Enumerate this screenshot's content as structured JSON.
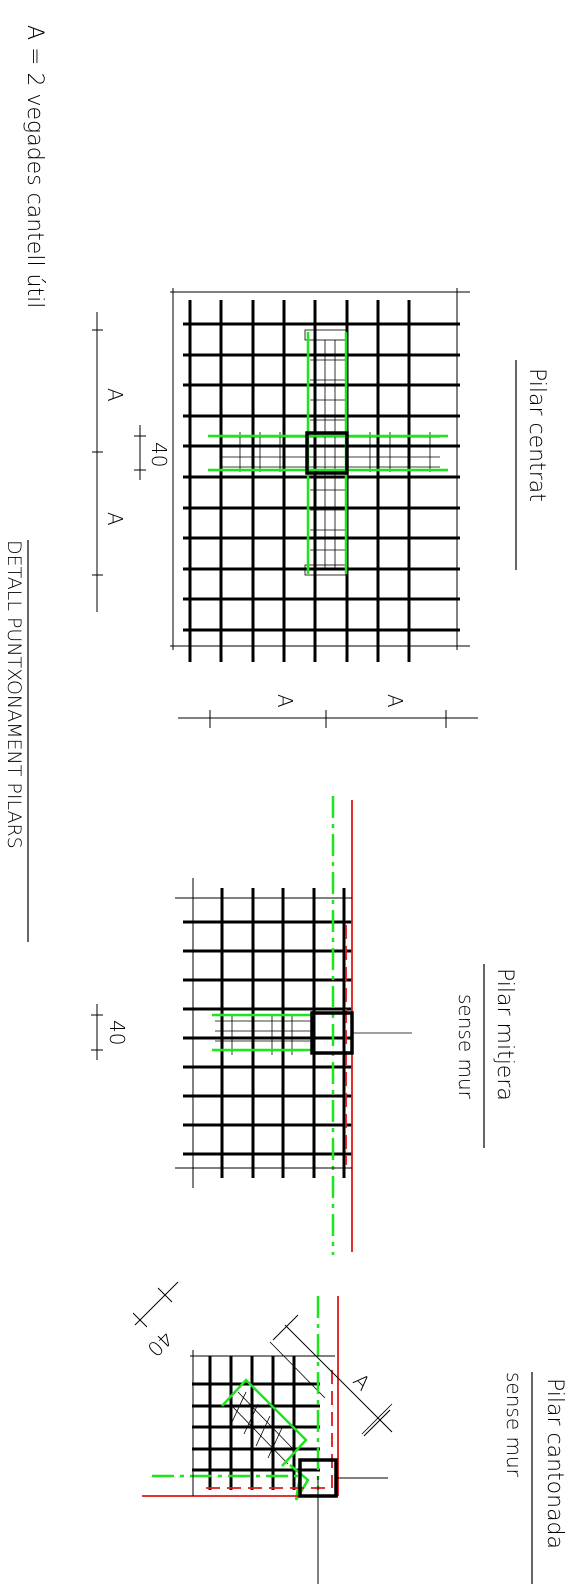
{
  "drawing": {
    "general_note": "A = 2 vegades cantell útil",
    "sheet_title": "DETALL PUNTXONAMENT PILARS",
    "center_section": {
      "title": "Pilar centrat",
      "dim_left_1": "A",
      "dim_left_2": "A",
      "dim_small": "40",
      "dim_bottom_1": "A",
      "dim_bottom_2": "A"
    },
    "middle_section": {
      "title": "Pilar mitjera",
      "subtitle": "sense mur",
      "dim_small": "40"
    },
    "corner_section": {
      "title": "Pilar cantonada",
      "subtitle": "sense mur",
      "dim_small": "40",
      "dim_diag": "A"
    }
  },
  "colors": {
    "rebar": "#000000",
    "punching_bars": "#1ee61e",
    "slab_edge": "#e01818"
  }
}
